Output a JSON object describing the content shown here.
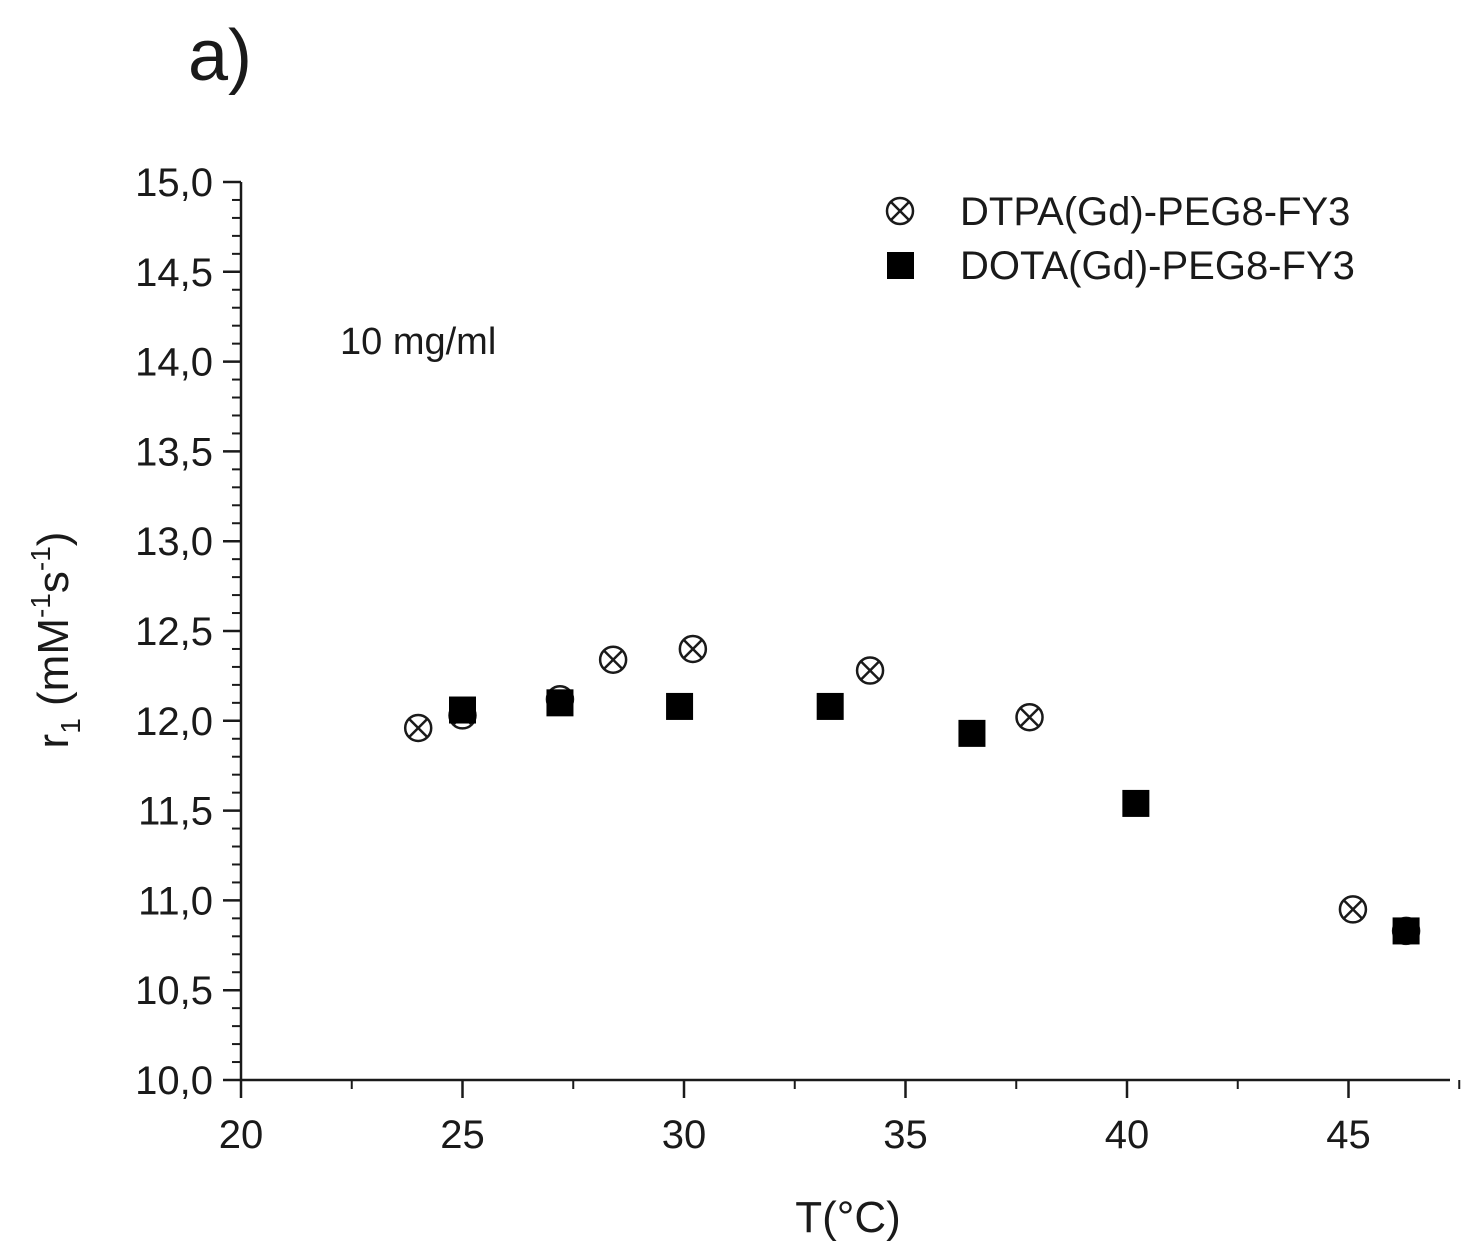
{
  "panel_label": "a)",
  "chart_data": {
    "type": "scatter",
    "xlabel": "T(°C)",
    "ylabel": {
      "prefix": "r",
      "subscript": "1",
      "open": " (mM",
      "sup1": "-1",
      "mid": "s",
      "sup2": "-1",
      "close": ")"
    },
    "xlim": [
      20,
      47.5
    ],
    "ylim": [
      10.0,
      15.0
    ],
    "xticks": [
      20,
      25,
      30,
      35,
      40,
      45
    ],
    "xtick_labels": [
      "20",
      "25",
      "30",
      "35",
      "40",
      "45"
    ],
    "yticks": [
      10.0,
      10.5,
      11.0,
      11.5,
      12.0,
      12.5,
      13.0,
      13.5,
      14.0,
      14.5,
      15.0
    ],
    "ytick_labels": [
      "10,0",
      "10,5",
      "11,0",
      "11,5",
      "12,0",
      "12,5",
      "13,0",
      "13,5",
      "14,0",
      "14,5",
      "15,0"
    ],
    "legend_position": "top-right",
    "annotation": "10 mg/ml",
    "series": [
      {
        "name": "DTPA(Gd)-PEG8-FY3",
        "marker": "circle-x",
        "points": [
          {
            "x": 24.0,
            "y": 11.96
          },
          {
            "x": 25.0,
            "y": 12.03
          },
          {
            "x": 27.2,
            "y": 12.12
          },
          {
            "x": 28.4,
            "y": 12.34
          },
          {
            "x": 30.2,
            "y": 12.4
          },
          {
            "x": 34.2,
            "y": 12.28
          },
          {
            "x": 37.8,
            "y": 12.02
          },
          {
            "x": 45.1,
            "y": 10.95
          },
          {
            "x": 46.3,
            "y": 10.83
          }
        ]
      },
      {
        "name": "DOTA(Gd)-PEG8-FY3",
        "marker": "square",
        "points": [
          {
            "x": 25.0,
            "y": 12.06
          },
          {
            "x": 27.2,
            "y": 12.1
          },
          {
            "x": 29.9,
            "y": 12.08
          },
          {
            "x": 33.3,
            "y": 12.08
          },
          {
            "x": 36.5,
            "y": 11.93
          },
          {
            "x": 40.2,
            "y": 11.54
          },
          {
            "x": 46.3,
            "y": 10.83
          }
        ]
      }
    ]
  }
}
